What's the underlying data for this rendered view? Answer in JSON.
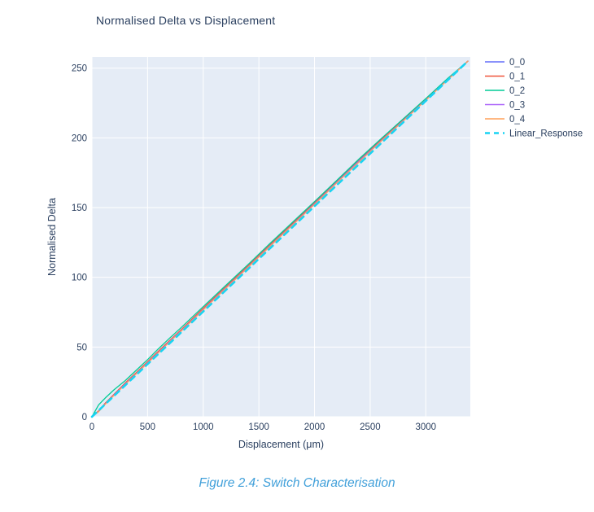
{
  "page": {
    "caption": "Figure 2.4: Switch Characterisation",
    "caption_color": "#41a0da"
  },
  "chart_data": {
    "type": "line",
    "title": "Normalised Delta vs Displacement",
    "xlabel": "Displacement (μm)",
    "ylabel": "Normalised Delta",
    "xlim": [
      0,
      3400
    ],
    "ylim": [
      0,
      258
    ],
    "xticks": [
      0,
      500,
      1000,
      1500,
      2000,
      2500,
      3000
    ],
    "yticks": [
      0,
      50,
      100,
      150,
      200,
      250
    ],
    "grid": true,
    "plot_bg": "#e5ecf6",
    "grid_color": "#ffffff",
    "font_color": "#2a3f5f",
    "legend_position": "right",
    "legend_entries": [
      "0_0",
      "0_1",
      "0_2",
      "0_3",
      "0_4",
      "Linear_Response"
    ],
    "series": [
      {
        "name": "0_0",
        "color": "#636efa",
        "dash": false,
        "width": 1.3,
        "x": [
          0,
          60,
          120,
          200,
          300,
          400,
          500,
          600,
          700,
          800,
          1000,
          1200,
          1400,
          1600,
          1800,
          2000,
          2200,
          2400,
          2600,
          2800,
          3000,
          3200,
          3378
        ],
        "y": [
          0,
          4.0,
          9.5,
          16.0,
          24.0,
          31.5,
          39.0,
          47.0,
          54.5,
          62.0,
          77.5,
          92.5,
          107.5,
          123.0,
          138.0,
          153.0,
          168.5,
          183.5,
          198.5,
          213.0,
          227.5,
          242.3,
          255
        ]
      },
      {
        "name": "0_1",
        "color": "#ef553b",
        "dash": false,
        "width": 1.3,
        "x": [
          0,
          60,
          120,
          200,
          300,
          400,
          500,
          600,
          700,
          800,
          1000,
          1200,
          1400,
          1600,
          1800,
          2000,
          2200,
          2400,
          2600,
          2800,
          3000,
          3200,
          3378
        ],
        "y": [
          0,
          4.2,
          9.8,
          16.3,
          24.3,
          31.8,
          39.5,
          47.3,
          54.8,
          62.3,
          77.8,
          93.0,
          108.0,
          123.3,
          138.5,
          153.8,
          169.3,
          184.5,
          199.0,
          213.3,
          227.8,
          242.5,
          255
        ]
      },
      {
        "name": "0_2",
        "color": "#00cc96",
        "dash": false,
        "width": 1.3,
        "x": [
          0,
          60,
          120,
          200,
          300,
          400,
          500,
          600,
          700,
          800,
          1000,
          1200,
          1400,
          1600,
          1800,
          2000,
          2200,
          2400,
          2600,
          2800,
          3000,
          3200,
          3378
        ],
        "y": [
          0,
          8.5,
          13.5,
          19.5,
          26.0,
          33.5,
          41.0,
          49.0,
          56.5,
          63.8,
          79.0,
          94.0,
          109.0,
          124.3,
          139.3,
          154.3,
          169.5,
          184.8,
          199.5,
          213.8,
          228.2,
          242.8,
          255
        ]
      },
      {
        "name": "0_3",
        "color": "#ab63fa",
        "dash": false,
        "width": 1.3,
        "x": [
          0,
          60,
          120,
          200,
          300,
          400,
          500,
          600,
          700,
          800,
          1000,
          1200,
          1400,
          1600,
          1800,
          2000,
          2200,
          2400,
          2600,
          2800,
          3000,
          3200,
          3378
        ],
        "y": [
          0,
          3.8,
          9.2,
          15.8,
          23.6,
          31.2,
          38.8,
          46.5,
          54.2,
          61.6,
          77.0,
          92.2,
          107.2,
          122.5,
          137.6,
          152.6,
          168.0,
          183.0,
          198.0,
          212.6,
          227.2,
          242.0,
          255
        ]
      },
      {
        "name": "0_4",
        "color": "#ffa15a",
        "dash": false,
        "width": 1.3,
        "x": [
          0,
          60,
          120,
          200,
          300,
          400,
          500,
          600,
          700,
          800,
          1000,
          1200,
          1400,
          1600,
          1800,
          2000,
          2200,
          2400,
          2600,
          2800,
          3000,
          3200,
          3378
        ],
        "y": [
          0,
          3.6,
          9.0,
          15.5,
          23.3,
          31.0,
          38.5,
          46.2,
          53.9,
          61.3,
          76.7,
          91.9,
          106.9,
          122.2,
          137.3,
          152.3,
          167.7,
          182.7,
          197.7,
          212.3,
          227.0,
          241.8,
          255
        ]
      },
      {
        "name": "Linear_Response",
        "color": "#19d3f3",
        "dash": true,
        "width": 2.6,
        "x": [
          0,
          3378
        ],
        "y": [
          0,
          255
        ]
      }
    ]
  }
}
